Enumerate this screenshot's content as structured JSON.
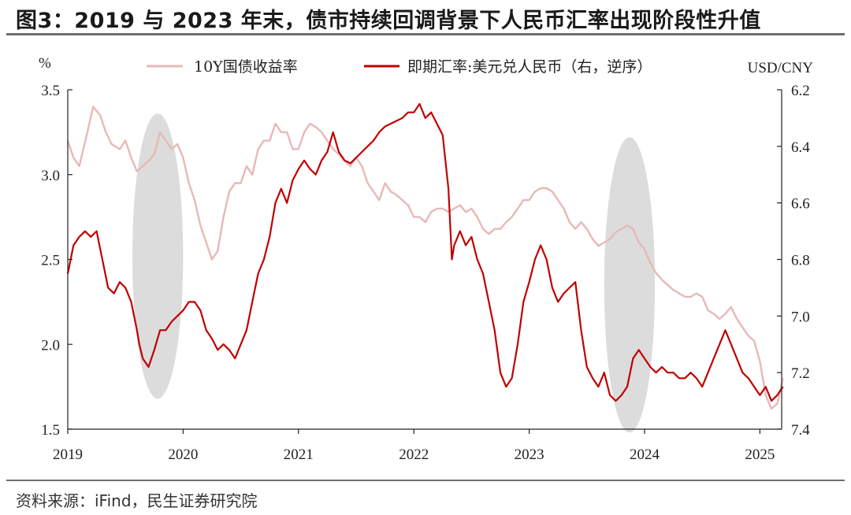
{
  "header": {
    "title": "图3：2019 与 2023 年末，债市持续回调背景下人民币汇率出现阶段性升值",
    "source": "资料来源：iFind，民生证券研究院"
  },
  "chart_data": {
    "type": "line",
    "ylabel_left": "%",
    "ylabel_right": "USD/CNY",
    "x_ticks": [
      "2019",
      "2020",
      "2021",
      "2022",
      "2023",
      "2024",
      "2025"
    ],
    "y_left_ticks": [
      "3.5",
      "3.0",
      "2.5",
      "2.0",
      "1.5"
    ],
    "y_right_ticks": [
      "6.2",
      "6.4",
      "6.6",
      "6.8",
      "7.0",
      "7.2",
      "7.4"
    ],
    "ylim_left": [
      1.5,
      3.5
    ],
    "ylim_right": [
      6.2,
      7.4
    ],
    "right_axis_inverted": true,
    "legend_position": "top",
    "series": [
      {
        "name": "10Y国债收益率",
        "axis": "left",
        "color": "#e8b8b8",
        "x": [
          2019.0,
          2019.05,
          2019.1,
          2019.17,
          2019.22,
          2019.28,
          2019.33,
          2019.38,
          2019.45,
          2019.5,
          2019.55,
          2019.6,
          2019.65,
          2019.7,
          2019.75,
          2019.8,
          2019.85,
          2019.9,
          2019.95,
          2020.0,
          2020.05,
          2020.1,
          2020.15,
          2020.2,
          2020.25,
          2020.3,
          2020.35,
          2020.4,
          2020.45,
          2020.5,
          2020.55,
          2020.6,
          2020.65,
          2020.7,
          2020.75,
          2020.8,
          2020.85,
          2020.9,
          2020.95,
          2021.0,
          2021.05,
          2021.1,
          2021.15,
          2021.2,
          2021.25,
          2021.3,
          2021.35,
          2021.4,
          2021.45,
          2021.5,
          2021.55,
          2021.6,
          2021.65,
          2021.7,
          2021.75,
          2021.8,
          2021.85,
          2021.9,
          2021.95,
          2022.0,
          2022.05,
          2022.1,
          2022.15,
          2022.2,
          2022.25,
          2022.3,
          2022.35,
          2022.4,
          2022.45,
          2022.5,
          2022.55,
          2022.6,
          2022.65,
          2022.7,
          2022.75,
          2022.8,
          2022.85,
          2022.9,
          2022.95,
          2023.0,
          2023.05,
          2023.1,
          2023.15,
          2023.2,
          2023.25,
          2023.3,
          2023.35,
          2023.4,
          2023.45,
          2023.5,
          2023.55,
          2023.6,
          2023.65,
          2023.7,
          2023.75,
          2023.8,
          2023.85,
          2023.9,
          2023.95,
          2024.0,
          2024.05,
          2024.1,
          2024.15,
          2024.2,
          2024.25,
          2024.3,
          2024.35,
          2024.4,
          2024.45,
          2024.5,
          2024.55,
          2024.6,
          2024.65,
          2024.7,
          2024.75,
          2024.8,
          2024.85,
          2024.9,
          2024.95,
          2025.0,
          2025.05,
          2025.1,
          2025.15,
          2025.2
        ],
        "values": [
          3.2,
          3.1,
          3.05,
          3.25,
          3.4,
          3.35,
          3.25,
          3.18,
          3.15,
          3.2,
          3.1,
          3.02,
          3.05,
          3.08,
          3.12,
          3.25,
          3.2,
          3.15,
          3.18,
          3.1,
          2.95,
          2.85,
          2.7,
          2.6,
          2.5,
          2.55,
          2.75,
          2.9,
          2.95,
          2.95,
          3.05,
          3.0,
          3.15,
          3.2,
          3.2,
          3.3,
          3.25,
          3.25,
          3.15,
          3.15,
          3.25,
          3.3,
          3.28,
          3.25,
          3.2,
          3.15,
          3.12,
          3.08,
          3.05,
          3.1,
          3.05,
          2.95,
          2.9,
          2.85,
          2.95,
          2.9,
          2.88,
          2.85,
          2.82,
          2.75,
          2.75,
          2.72,
          2.78,
          2.8,
          2.8,
          2.78,
          2.8,
          2.82,
          2.78,
          2.8,
          2.75,
          2.68,
          2.65,
          2.68,
          2.68,
          2.72,
          2.75,
          2.8,
          2.85,
          2.85,
          2.9,
          2.92,
          2.92,
          2.9,
          2.85,
          2.8,
          2.72,
          2.68,
          2.72,
          2.68,
          2.62,
          2.58,
          2.6,
          2.62,
          2.66,
          2.68,
          2.7,
          2.68,
          2.6,
          2.56,
          2.48,
          2.42,
          2.38,
          2.35,
          2.32,
          2.3,
          2.28,
          2.28,
          2.3,
          2.28,
          2.2,
          2.18,
          2.15,
          2.18,
          2.22,
          2.15,
          2.1,
          2.05,
          2.02,
          1.9,
          1.7,
          1.62,
          1.65,
          1.8
        ]
      },
      {
        "name": "即期汇率:美元兑人民币（右，逆序）",
        "axis": "right",
        "color": "#c00000",
        "x": [
          2019.0,
          2019.05,
          2019.1,
          2019.15,
          2019.2,
          2019.25,
          2019.3,
          2019.35,
          2019.4,
          2019.45,
          2019.5,
          2019.55,
          2019.6,
          2019.62,
          2019.65,
          2019.7,
          2019.75,
          2019.8,
          2019.85,
          2019.9,
          2019.95,
          2020.0,
          2020.05,
          2020.1,
          2020.15,
          2020.2,
          2020.25,
          2020.3,
          2020.35,
          2020.4,
          2020.45,
          2020.5,
          2020.55,
          2020.6,
          2020.65,
          2020.7,
          2020.75,
          2020.8,
          2020.85,
          2020.9,
          2020.95,
          2021.0,
          2021.05,
          2021.1,
          2021.15,
          2021.2,
          2021.25,
          2021.3,
          2021.35,
          2021.4,
          2021.45,
          2021.5,
          2021.55,
          2021.6,
          2021.65,
          2021.7,
          2021.75,
          2021.8,
          2021.85,
          2021.9,
          2021.95,
          2022.0,
          2022.05,
          2022.1,
          2022.15,
          2022.2,
          2022.25,
          2022.3,
          2022.33,
          2022.35,
          2022.4,
          2022.45,
          2022.5,
          2022.55,
          2022.6,
          2022.65,
          2022.7,
          2022.75,
          2022.8,
          2022.85,
          2022.9,
          2022.95,
          2023.0,
          2023.05,
          2023.1,
          2023.15,
          2023.2,
          2023.25,
          2023.3,
          2023.35,
          2023.4,
          2023.45,
          2023.5,
          2023.55,
          2023.6,
          2023.65,
          2023.7,
          2023.75,
          2023.8,
          2023.85,
          2023.9,
          2023.95,
          2024.0,
          2024.05,
          2024.1,
          2024.15,
          2024.2,
          2024.25,
          2024.3,
          2024.35,
          2024.4,
          2024.45,
          2024.5,
          2024.55,
          2024.6,
          2024.65,
          2024.7,
          2024.75,
          2024.8,
          2024.85,
          2024.9,
          2024.95,
          2025.0,
          2025.05,
          2025.1,
          2025.15,
          2025.2
        ],
        "values": [
          6.85,
          6.75,
          6.72,
          6.7,
          6.72,
          6.7,
          6.8,
          6.9,
          6.92,
          6.88,
          6.9,
          6.95,
          7.05,
          7.1,
          7.15,
          7.18,
          7.12,
          7.05,
          7.05,
          7.02,
          7.0,
          6.98,
          6.95,
          6.95,
          6.98,
          7.05,
          7.08,
          7.12,
          7.1,
          7.12,
          7.15,
          7.1,
          7.05,
          6.95,
          6.85,
          6.8,
          6.72,
          6.6,
          6.55,
          6.6,
          6.52,
          6.48,
          6.45,
          6.48,
          6.5,
          6.45,
          6.42,
          6.35,
          6.42,
          6.45,
          6.46,
          6.44,
          6.42,
          6.4,
          6.38,
          6.35,
          6.33,
          6.32,
          6.31,
          6.3,
          6.28,
          6.28,
          6.25,
          6.3,
          6.28,
          6.32,
          6.36,
          6.55,
          6.8,
          6.75,
          6.7,
          6.75,
          6.72,
          6.8,
          6.85,
          6.95,
          7.05,
          7.2,
          7.25,
          7.22,
          7.1,
          6.95,
          6.88,
          6.8,
          6.75,
          6.8,
          6.9,
          6.95,
          6.92,
          6.9,
          6.88,
          7.05,
          7.18,
          7.22,
          7.25,
          7.2,
          7.28,
          7.3,
          7.28,
          7.25,
          7.15,
          7.12,
          7.15,
          7.18,
          7.2,
          7.18,
          7.2,
          7.2,
          7.22,
          7.22,
          7.2,
          7.22,
          7.25,
          7.2,
          7.15,
          7.1,
          7.05,
          7.1,
          7.15,
          7.2,
          7.22,
          7.25,
          7.28,
          7.25,
          7.3,
          7.28,
          7.25
        ]
      }
    ],
    "highlight_periods": [
      {
        "x_center": 2019.78,
        "x_span": 0.22,
        "y_left_center": 2.52,
        "y_left_span": 0.84
      },
      {
        "x_center": 2023.87,
        "x_span": 0.22,
        "y_left_center": 2.35,
        "y_left_span": 0.87
      }
    ]
  }
}
